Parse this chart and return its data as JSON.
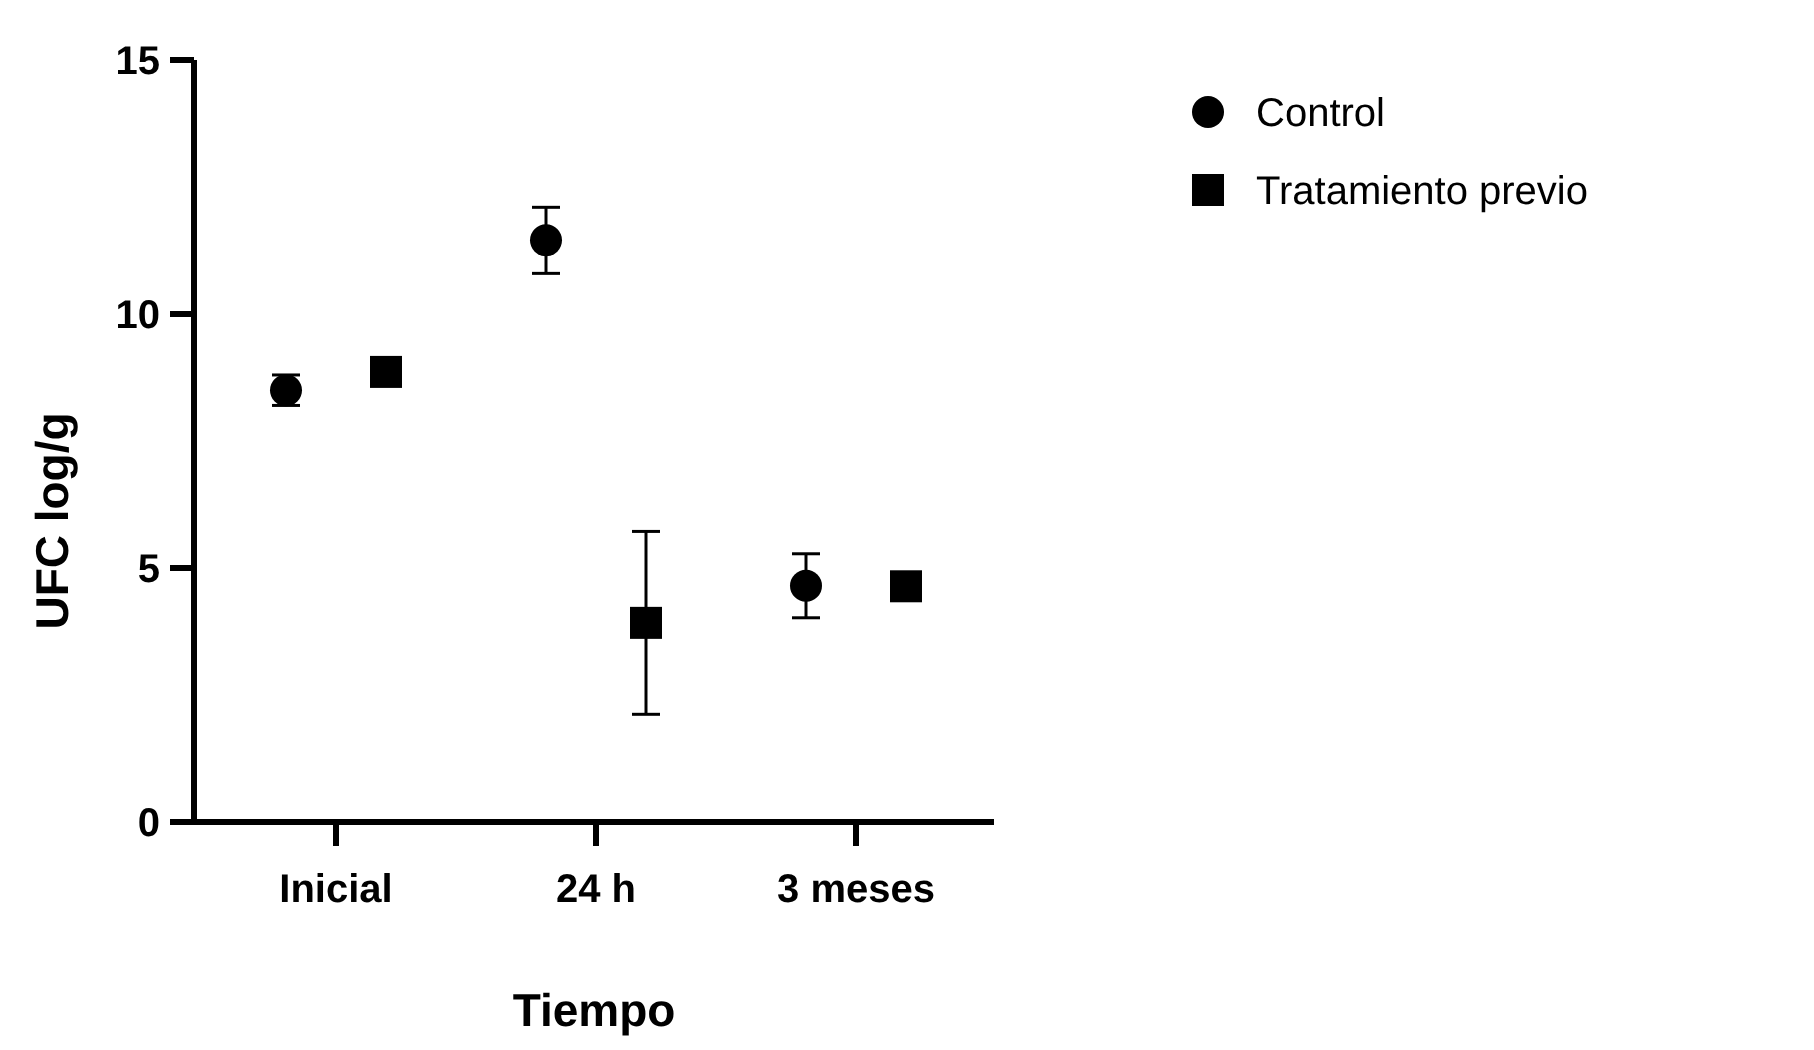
{
  "chart_data": {
    "type": "scatter",
    "xlabel": "Tiempo",
    "ylabel": "UFC log/g",
    "categories": [
      "Inicial",
      "24 h",
      "3 meses"
    ],
    "ylim": [
      0,
      15
    ],
    "yticks": [
      0,
      5,
      10,
      15
    ],
    "grid": false,
    "legend": "top right",
    "series": [
      {
        "name": "Control",
        "color": "#000000",
        "marker": "circle",
        "values": [
          8.5,
          11.45,
          4.65
        ],
        "errors": [
          0.3,
          0.65,
          0.63
        ]
      },
      {
        "name": "Tratamiento previo",
        "color": "#000000",
        "marker": "square",
        "values": [
          8.86,
          3.92,
          4.64
        ],
        "errors": [
          null,
          1.8,
          null
        ]
      }
    ]
  }
}
